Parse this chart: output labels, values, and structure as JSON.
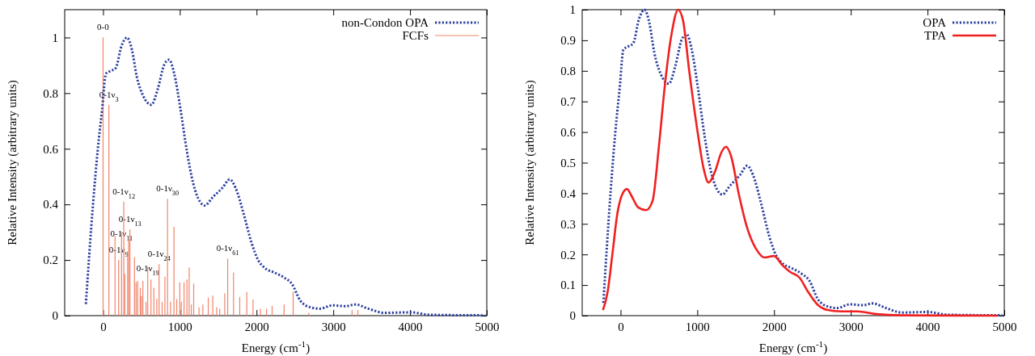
{
  "chart_data": [
    {
      "type": "line",
      "xlabel": "Energy (cm$^{-1}$)",
      "ylabel": "Relative Intensity (arbitrary units)",
      "xlim": [
        -500,
        5000
      ],
      "ylim": [
        0,
        1.1
      ],
      "xticks": [
        0,
        1000,
        2000,
        3000,
        4000,
        5000
      ],
      "yticks": [
        0,
        0.2,
        0.4,
        0.6,
        0.8,
        1
      ],
      "legend": "top right",
      "series": [
        {
          "name": "non-Condon OPA",
          "line_style": "dotted",
          "color": "#2b3f9e",
          "x": [
            -224,
            -131,
            -68,
            -13,
            38,
            101,
            165,
            241,
            312,
            376,
            439,
            523,
            629,
            713,
            798,
            861,
            924,
            1008,
            1093,
            1177,
            1262,
            1325,
            1430,
            1557,
            1650,
            1726,
            1831,
            1937,
            2021,
            2105,
            2232,
            2359,
            2464,
            2570,
            2700,
            2823,
            2992,
            3160,
            3287,
            3456,
            3667,
            4004,
            4257,
            4975
          ],
          "values": [
            0.042,
            0.4,
            0.6,
            0.74,
            0.87,
            0.88,
            0.89,
            0.97,
            1.0,
            0.956,
            0.86,
            0.79,
            0.758,
            0.815,
            0.903,
            0.92,
            0.874,
            0.744,
            0.59,
            0.473,
            0.41,
            0.396,
            0.426,
            0.46,
            0.49,
            0.46,
            0.367,
            0.26,
            0.2,
            0.172,
            0.155,
            0.137,
            0.113,
            0.054,
            0.03,
            0.025,
            0.037,
            0.034,
            0.04,
            0.025,
            0.01,
            0.012,
            0.003,
            0.001
          ]
        },
        {
          "name": "FCFs",
          "type": "bar",
          "color": "#f2846a",
          "x": [
            0,
            76,
            156,
            203,
            241,
            270,
            283,
            321,
            333,
            350,
            409,
            430,
            451,
            485,
            500,
            519,
            560,
            582,
            624,
            662,
            700,
            730,
            770,
            806,
            840,
            880,
            924,
            960,
            1000,
            1020,
            1055,
            1093,
            1122,
            1150,
            1181,
            1250,
            1300,
            1371,
            1430,
            1480,
            1520,
            1586,
            1624,
            1700,
            1781,
            1873,
            1954,
            2050,
            2130,
            2203,
            2359,
            2477,
            2680,
            3245,
            3321
          ],
          "values": [
            1.0,
            0.758,
            0.286,
            0.2,
            0.3,
            0.41,
            0.15,
            0.23,
            0.275,
            0.31,
            0.21,
            0.12,
            0.125,
            0.1,
            0.07,
            0.125,
            0.05,
            0.175,
            0.13,
            0.1,
            0.06,
            0.185,
            0.05,
            0.14,
            0.42,
            0.05,
            0.32,
            0.06,
            0.12,
            0.05,
            0.12,
            0.13,
            0.173,
            0.04,
            0.115,
            0.03,
            0.04,
            0.065,
            0.072,
            0.03,
            0.025,
            0.08,
            0.205,
            0.155,
            0.067,
            0.085,
            0.058,
            0.025,
            0.025,
            0.035,
            0.04,
            0.087,
            0.01,
            0.02,
            0.02
          ]
        }
      ],
      "annotations": [
        {
          "text": "0-0",
          "x": 0,
          "y": 1.0
        },
        {
          "text": "0-1ν$_{3}$",
          "x": 76,
          "y": 0.758
        },
        {
          "text": "0-1ν$_{12}$",
          "x": 270,
          "y": 0.41
        },
        {
          "text": "0-1ν$_{11}$",
          "x": 241,
          "y": 0.3
        },
        {
          "text": "0-1ν$_{13}$",
          "x": 350,
          "y": 0.31
        },
        {
          "text": "0-1ν$_{9}$",
          "x": 203,
          "y": 0.2
        },
        {
          "text": "0-1ν$_{19}$",
          "x": 582,
          "y": 0.175
        },
        {
          "text": "0-1ν$_{24}$",
          "x": 730,
          "y": 0.185
        },
        {
          "text": "0-1ν$_{30}$",
          "x": 840,
          "y": 0.42
        },
        {
          "text": "0-1ν$_{61}$",
          "x": 1624,
          "y": 0.205
        }
      ]
    },
    {
      "type": "line",
      "xlabel": "Energy (cm$^{-1}$)",
      "ylabel": "Relative Intensity (arbitrary units)",
      "xlim": [
        -500,
        5000
      ],
      "ylim": [
        0,
        1
      ],
      "xticks": [
        0,
        1000,
        2000,
        3000,
        4000,
        5000
      ],
      "yticks": [
        0,
        0.1,
        0.2,
        0.3,
        0.4,
        0.5,
        0.6,
        0.7,
        0.8,
        0.9,
        1
      ],
      "legend": "top right",
      "series": [
        {
          "name": "OPA",
          "line_style": "dotted",
          "color": "#2b3f9e",
          "x": [
            -224,
            -131,
            -68,
            -13,
            38,
            101,
            165,
            241,
            312,
            376,
            439,
            523,
            629,
            713,
            798,
            861,
            924,
            1008,
            1093,
            1177,
            1262,
            1325,
            1430,
            1557,
            1650,
            1726,
            1831,
            1937,
            2021,
            2105,
            2232,
            2359,
            2464,
            2570,
            2700,
            2823,
            2992,
            3160,
            3287,
            3456,
            3667,
            4004,
            4257,
            4975
          ],
          "values": [
            0.042,
            0.4,
            0.6,
            0.74,
            0.87,
            0.88,
            0.89,
            0.97,
            1.0,
            0.956,
            0.86,
            0.79,
            0.758,
            0.815,
            0.903,
            0.92,
            0.874,
            0.744,
            0.59,
            0.473,
            0.41,
            0.396,
            0.426,
            0.46,
            0.49,
            0.46,
            0.367,
            0.26,
            0.2,
            0.172,
            0.155,
            0.137,
            0.113,
            0.054,
            0.03,
            0.025,
            0.037,
            0.034,
            0.04,
            0.025,
            0.01,
            0.012,
            0.003,
            0.001
          ]
        },
        {
          "name": "TPA",
          "line_style": "solid",
          "color": "#f02020",
          "x": [
            -229,
            -167,
            -104,
            -42,
            21,
            83,
            146,
            229,
            333,
            417,
            500,
            583,
            667,
            750,
            813,
            896,
            1000,
            1083,
            1146,
            1229,
            1313,
            1375,
            1438,
            1542,
            1646,
            1771,
            1875,
            2000,
            2104,
            2208,
            2333,
            2438,
            2563,
            2688,
            2875,
            3083,
            3333,
            3667,
            4917
          ],
          "values": [
            0.018,
            0.08,
            0.206,
            0.333,
            0.396,
            0.414,
            0.39,
            0.354,
            0.345,
            0.375,
            0.554,
            0.766,
            0.924,
            1.0,
            0.966,
            0.797,
            0.607,
            0.48,
            0.435,
            0.47,
            0.533,
            0.552,
            0.523,
            0.396,
            0.29,
            0.216,
            0.19,
            0.195,
            0.166,
            0.143,
            0.124,
            0.08,
            0.037,
            0.019,
            0.014,
            0.014,
            0.005,
            0.001,
            0
          ]
        }
      ]
    }
  ]
}
